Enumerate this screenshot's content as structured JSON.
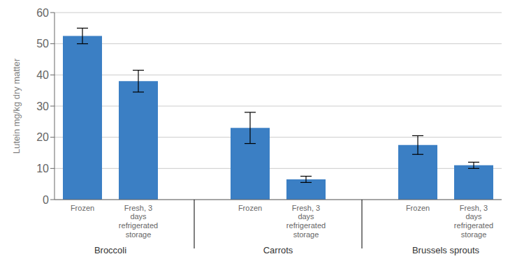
{
  "chart_data": {
    "type": "bar",
    "ylabel": "Lutein mg/kg dry matter",
    "categories": [
      "Broccoli",
      "Carrots",
      "Brussels sprouts"
    ],
    "series": [
      {
        "name": "Frozen",
        "color": "#3B7FC4",
        "values": [
          52.5,
          23.0,
          17.5
        ],
        "errors": [
          2.5,
          5.0,
          3.0
        ]
      },
      {
        "name": "Fresh, 3\ndays\nrefrigerated\nstorage",
        "color": "#3B7FC4",
        "values": [
          38.0,
          6.5,
          11.0
        ],
        "errors": [
          3.5,
          1.0,
          1.0
        ]
      }
    ],
    "ylim": [
      0,
      60
    ],
    "yticks": [
      0,
      10,
      20,
      30,
      40,
      50,
      60
    ],
    "grid": true
  }
}
